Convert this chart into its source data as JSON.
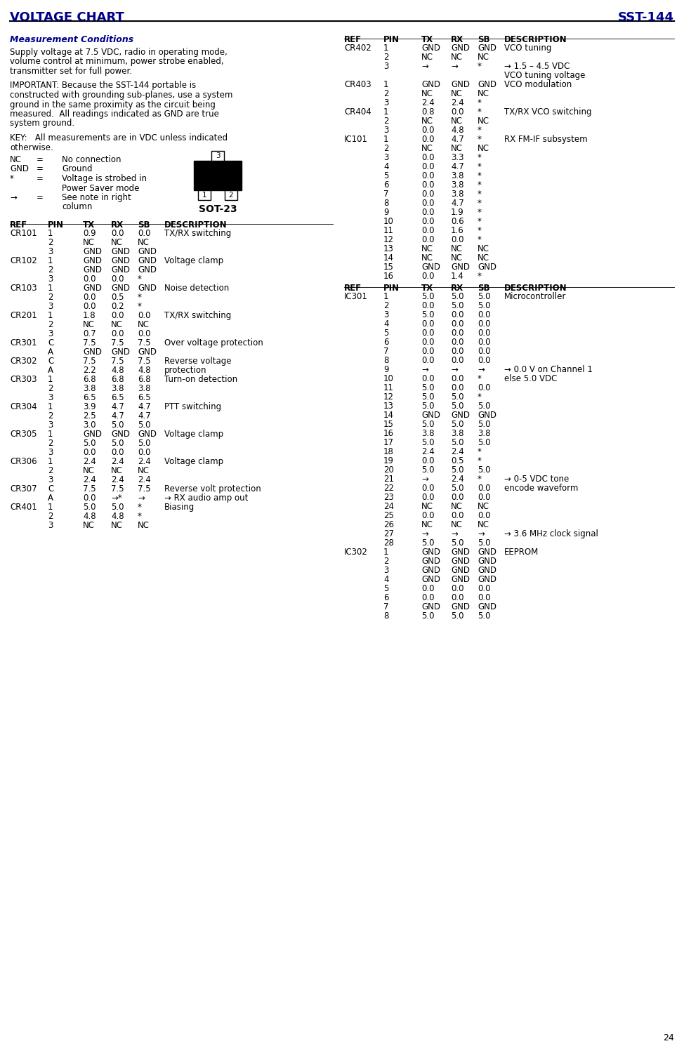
{
  "title_left": "VOLTAGE CHART",
  "title_right": "SST-144",
  "title_color": "#00008B",
  "page_number": "24",
  "col_headers": [
    "REF",
    "PIN",
    "TX",
    "RX",
    "SB",
    "DESCRIPTION"
  ],
  "left_table": [
    [
      "CR101",
      "1",
      "0.9",
      "0.0",
      "0.0",
      "TX/RX switching"
    ],
    [
      "",
      "2",
      "NC",
      "NC",
      "NC",
      ""
    ],
    [
      "",
      "3",
      "GND",
      "GND",
      "GND",
      ""
    ],
    [
      "CR102",
      "1",
      "GND",
      "GND",
      "GND",
      "Voltage clamp"
    ],
    [
      "",
      "2",
      "GND",
      "GND",
      "GND",
      ""
    ],
    [
      "",
      "3",
      "0.0",
      "0.0",
      "*",
      ""
    ],
    [
      "CR103",
      "1",
      "GND",
      "GND",
      "GND",
      "Noise detection"
    ],
    [
      "",
      "2",
      "0.0",
      "0.5",
      "*",
      ""
    ],
    [
      "",
      "3",
      "0.0",
      "0.2",
      "*",
      ""
    ],
    [
      "CR201",
      "1",
      "1.8",
      "0.0",
      "0.0",
      "TX/RX switching"
    ],
    [
      "",
      "2",
      "NC",
      "NC",
      "NC",
      ""
    ],
    [
      "",
      "3",
      "0.7",
      "0.0",
      "0.0",
      ""
    ],
    [
      "CR301",
      "C",
      "7.5",
      "7.5",
      "7.5",
      "Over voltage protection"
    ],
    [
      "",
      "A",
      "GND",
      "GND",
      "GND",
      ""
    ],
    [
      "CR302",
      "C",
      "7.5",
      "7.5",
      "7.5",
      "Reverse voltage"
    ],
    [
      "",
      "A",
      "2.2",
      "4.8",
      "4.8",
      "protection"
    ],
    [
      "CR303",
      "1",
      "6.8",
      "6.8",
      "6.8",
      "Turn-on detection"
    ],
    [
      "",
      "2",
      "3.8",
      "3.8",
      "3.8",
      ""
    ],
    [
      "",
      "3",
      "6.5",
      "6.5",
      "6.5",
      ""
    ],
    [
      "CR304",
      "1",
      "3.9",
      "4.7",
      "4.7",
      "PTT switching"
    ],
    [
      "",
      "2",
      "2.5",
      "4.7",
      "4.7",
      ""
    ],
    [
      "",
      "3",
      "3.0",
      "5.0",
      "5.0",
      ""
    ],
    [
      "CR305",
      "1",
      "GND",
      "GND",
      "GND",
      "Voltage clamp"
    ],
    [
      "",
      "2",
      "5.0",
      "5.0",
      "5.0",
      ""
    ],
    [
      "",
      "3",
      "0.0",
      "0.0",
      "0.0",
      ""
    ],
    [
      "CR306",
      "1",
      "2.4",
      "2.4",
      "2.4",
      "Voltage clamp"
    ],
    [
      "",
      "2",
      "NC",
      "NC",
      "NC",
      ""
    ],
    [
      "",
      "3",
      "2.4",
      "2.4",
      "2.4",
      ""
    ],
    [
      "CR307",
      "C",
      "7.5",
      "7.5",
      "7.5",
      "Reverse volt protection"
    ],
    [
      "",
      "A",
      "0.0",
      "→*",
      "→",
      "→ RX audio amp out"
    ],
    [
      "CR401",
      "1",
      "5.0",
      "5.0",
      "*",
      "Biasing"
    ],
    [
      "",
      "2",
      "4.8",
      "4.8",
      "*",
      ""
    ],
    [
      "",
      "3",
      "NC",
      "NC",
      "NC",
      ""
    ]
  ],
  "right_table_part1": [
    [
      "CR402",
      "1",
      "GND",
      "GND",
      "GND",
      "VCO tuning"
    ],
    [
      "",
      "2",
      "NC",
      "NC",
      "NC",
      ""
    ],
    [
      "",
      "3",
      "→",
      "→",
      "*",
      "→ 1.5 – 4.5 VDC"
    ],
    [
      "",
      "",
      "",
      "",
      "",
      "VCO tuning voltage"
    ],
    [
      "CR403",
      "1",
      "GND",
      "GND",
      "GND",
      "VCO modulation"
    ],
    [
      "",
      "2",
      "NC",
      "NC",
      "NC",
      ""
    ],
    [
      "",
      "3",
      "2.4",
      "2.4",
      "*",
      ""
    ],
    [
      "CR404",
      "1",
      "0.8",
      "0.0",
      "*",
      "TX/RX VCO switching"
    ],
    [
      "",
      "2",
      "NC",
      "NC",
      "NC",
      ""
    ],
    [
      "",
      "3",
      "0.0",
      "4.8",
      "*",
      ""
    ],
    [
      "IC101",
      "1",
      "0.0",
      "4.7",
      "*",
      "RX FM-IF subsystem"
    ],
    [
      "",
      "2",
      "NC",
      "NC",
      "NC",
      ""
    ],
    [
      "",
      "3",
      "0.0",
      "3.3",
      "*",
      ""
    ],
    [
      "",
      "4",
      "0.0",
      "4.7",
      "*",
      ""
    ],
    [
      "",
      "5",
      "0.0",
      "3.8",
      "*",
      ""
    ],
    [
      "",
      "6",
      "0.0",
      "3.8",
      "*",
      ""
    ],
    [
      "",
      "7",
      "0.0",
      "3.8",
      "*",
      ""
    ],
    [
      "",
      "8",
      "0.0",
      "4.7",
      "*",
      ""
    ],
    [
      "",
      "9",
      "0.0",
      "1.9",
      "*",
      ""
    ],
    [
      "",
      "10",
      "0.0",
      "0.6",
      "*",
      ""
    ],
    [
      "",
      "11",
      "0.0",
      "1.6",
      "*",
      ""
    ],
    [
      "",
      "12",
      "0.0",
      "0.0",
      "*",
      ""
    ],
    [
      "",
      "13",
      "NC",
      "NC",
      "NC",
      ""
    ],
    [
      "",
      "14",
      "NC",
      "NC",
      "NC",
      ""
    ],
    [
      "",
      "15",
      "GND",
      "GND",
      "GND",
      ""
    ],
    [
      "",
      "16",
      "0.0",
      "1.4",
      "*",
      ""
    ]
  ],
  "right_table_part2": [
    [
      "IC301",
      "1",
      "5.0",
      "5.0",
      "5.0",
      "Microcontroller"
    ],
    [
      "",
      "2",
      "0.0",
      "5.0",
      "5.0",
      ""
    ],
    [
      "",
      "3",
      "5.0",
      "0.0",
      "0.0",
      ""
    ],
    [
      "",
      "4",
      "0.0",
      "0.0",
      "0.0",
      ""
    ],
    [
      "",
      "5",
      "0.0",
      "0.0",
      "0.0",
      ""
    ],
    [
      "",
      "6",
      "0.0",
      "0.0",
      "0.0",
      ""
    ],
    [
      "",
      "7",
      "0.0",
      "0.0",
      "0.0",
      ""
    ],
    [
      "",
      "8",
      "0.0",
      "0.0",
      "0.0",
      ""
    ],
    [
      "",
      "9",
      "→",
      "→",
      "→",
      "→ 0.0 V on Channel 1"
    ],
    [
      "",
      "10",
      "0.0",
      "0.0",
      "*",
      "else 5.0 VDC"
    ],
    [
      "",
      "11",
      "5.0",
      "0.0",
      "0.0",
      ""
    ],
    [
      "",
      "12",
      "5.0",
      "5.0",
      "*",
      ""
    ],
    [
      "",
      "13",
      "5.0",
      "5.0",
      "5.0",
      ""
    ],
    [
      "",
      "14",
      "GND",
      "GND",
      "GND",
      ""
    ],
    [
      "",
      "15",
      "5.0",
      "5.0",
      "5.0",
      ""
    ],
    [
      "",
      "16",
      "3.8",
      "3.8",
      "3.8",
      ""
    ],
    [
      "",
      "17",
      "5.0",
      "5.0",
      "5.0",
      ""
    ],
    [
      "",
      "18",
      "2.4",
      "2.4",
      "*",
      ""
    ],
    [
      "",
      "19",
      "0.0",
      "0.5",
      "*",
      ""
    ],
    [
      "",
      "20",
      "5.0",
      "5.0",
      "5.0",
      ""
    ],
    [
      "",
      "21",
      "→",
      "2.4",
      "*",
      "→ 0-5 VDC tone"
    ],
    [
      "",
      "22",
      "0.0",
      "5.0",
      "0.0",
      "encode waveform"
    ],
    [
      "",
      "23",
      "0.0",
      "0.0",
      "0.0",
      ""
    ],
    [
      "",
      "24",
      "NC",
      "NC",
      "NC",
      ""
    ],
    [
      "",
      "25",
      "0.0",
      "0.0",
      "0.0",
      ""
    ],
    [
      "",
      "26",
      "NC",
      "NC",
      "NC",
      ""
    ],
    [
      "",
      "27",
      "→",
      "→",
      "→",
      "→ 3.6 MHz clock signal"
    ],
    [
      "",
      "28",
      "5.0",
      "5.0",
      "5.0",
      ""
    ],
    [
      "IC302",
      "1",
      "GND",
      "GND",
      "GND",
      "EEPROM"
    ],
    [
      "",
      "2",
      "GND",
      "GND",
      "GND",
      ""
    ],
    [
      "",
      "3",
      "GND",
      "GND",
      "GND",
      ""
    ],
    [
      "",
      "4",
      "GND",
      "GND",
      "GND",
      ""
    ],
    [
      "",
      "5",
      "0.0",
      "0.0",
      "0.0",
      ""
    ],
    [
      "",
      "6",
      "0.0",
      "0.0",
      "0.0",
      ""
    ],
    [
      "",
      "7",
      "GND",
      "GND",
      "GND",
      ""
    ],
    [
      "",
      "8",
      "5.0",
      "5.0",
      "5.0",
      ""
    ]
  ],
  "measurement_conditions_text": [
    "Supply voltage at 7.5 VDC, radio in operating mode,",
    "volume control at minimum, power strobe enabled,",
    "transmitter set for full power.",
    "",
    "IMPORTANT: Because the SST-144 portable is",
    "constructed with grounding sub-planes, use a system",
    "ground in the same proximity as the circuit being",
    "measured.  All readings indicated as GND are true",
    "system ground.",
    "",
    "KEY:   All measurements are in VDC unless indicated",
    "otherwise."
  ]
}
